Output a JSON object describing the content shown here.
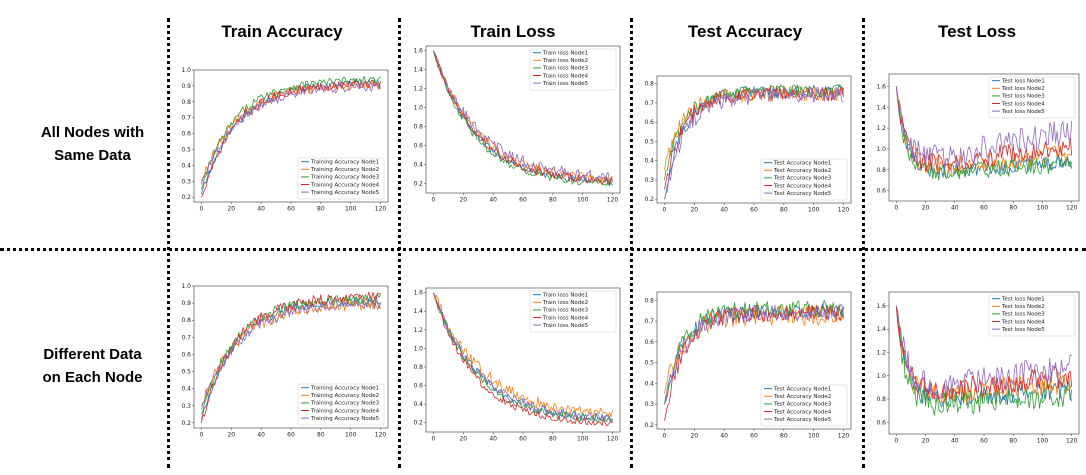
{
  "column_titles": [
    "Train Accuracy",
    "Train Loss",
    "Test Accuracy",
    "Test Loss"
  ],
  "row_labels": [
    {
      "line1": "All Nodes with",
      "line2": "Same Data"
    },
    {
      "line1": "Different Data",
      "line2": "on Each Node"
    }
  ],
  "colors": {
    "node1": "#1f77b4",
    "node2": "#ff7f0e",
    "node3": "#2ca02c",
    "node4": "#d62728",
    "node5": "#9467bd"
  },
  "chart_data": [
    {
      "id": "same-train-acc",
      "type": "line",
      "row": "All Nodes with Same Data",
      "column": "Train Accuracy",
      "xlim": [
        0,
        120
      ],
      "ylim": [
        0.17,
        1.0
      ],
      "xticks": [
        0,
        20,
        40,
        60,
        80,
        100,
        120
      ],
      "yticks": [
        0.2,
        0.3,
        0.4,
        0.5,
        0.6,
        0.7,
        0.8,
        0.9,
        1.0
      ],
      "legend_position": "lower-right",
      "series": [
        {
          "name": "Training Accuracy Node1",
          "start": 0.22,
          "end": 0.93,
          "rate": 0.04,
          "noise": 0.025
        },
        {
          "name": "Training Accuracy Node2",
          "start": 0.3,
          "end": 0.91,
          "rate": 0.042,
          "noise": 0.03
        },
        {
          "name": "Training Accuracy Node3",
          "start": 0.25,
          "end": 0.94,
          "rate": 0.045,
          "noise": 0.025
        },
        {
          "name": "Training Accuracy Node4",
          "start": 0.2,
          "end": 0.92,
          "rate": 0.043,
          "noise": 0.028
        },
        {
          "name": "Training Accuracy Node5",
          "start": 0.28,
          "end": 0.9,
          "rate": 0.04,
          "noise": 0.03
        }
      ]
    },
    {
      "id": "same-train-loss",
      "type": "line",
      "row": "All Nodes with Same Data",
      "column": "Train Loss",
      "xlim": [
        0,
        120
      ],
      "ylim": [
        0.1,
        1.65
      ],
      "xticks": [
        0,
        20,
        40,
        60,
        80,
        100,
        120
      ],
      "yticks": [
        0.2,
        0.4,
        0.6,
        0.8,
        1.0,
        1.2,
        1.4,
        1.6
      ],
      "legend_position": "upper-right",
      "series": [
        {
          "name": "Train loss Node1",
          "start": 1.6,
          "end": 0.2,
          "rate": 0.035,
          "noise": 0.04
        },
        {
          "name": "Train loss Node2",
          "start": 1.6,
          "end": 0.22,
          "rate": 0.033,
          "noise": 0.05
        },
        {
          "name": "Train loss Node3",
          "start": 1.6,
          "end": 0.18,
          "rate": 0.036,
          "noise": 0.04
        },
        {
          "name": "Train loss Node4",
          "start": 1.6,
          "end": 0.2,
          "rate": 0.034,
          "noise": 0.045
        },
        {
          "name": "Train loss Node5",
          "start": 1.6,
          "end": 0.24,
          "rate": 0.032,
          "noise": 0.06
        }
      ]
    },
    {
      "id": "same-test-acc",
      "type": "line",
      "row": "All Nodes with Same Data",
      "column": "Test Accuracy",
      "xlim": [
        0,
        120
      ],
      "ylim": [
        0.18,
        0.84
      ],
      "xticks": [
        0,
        20,
        40,
        60,
        80,
        100,
        120
      ],
      "yticks": [
        0.2,
        0.3,
        0.4,
        0.5,
        0.6,
        0.7,
        0.8
      ],
      "legend_position": "lower-right",
      "series": [
        {
          "name": "Test Accuracy Node1",
          "start": 0.2,
          "end": 0.76,
          "rate": 0.08,
          "noise": 0.035
        },
        {
          "name": "Test Accuracy Node2",
          "start": 0.35,
          "end": 0.75,
          "rate": 0.08,
          "noise": 0.04
        },
        {
          "name": "Test Accuracy Node3",
          "start": 0.3,
          "end": 0.76,
          "rate": 0.085,
          "noise": 0.035
        },
        {
          "name": "Test Accuracy Node4",
          "start": 0.25,
          "end": 0.75,
          "rate": 0.08,
          "noise": 0.04
        },
        {
          "name": "Test Accuracy Node5",
          "start": 0.2,
          "end": 0.74,
          "rate": 0.075,
          "noise": 0.045
        }
      ]
    },
    {
      "id": "same-test-loss",
      "type": "line",
      "row": "All Nodes with Same Data",
      "column": "Test Loss",
      "xlim": [
        0,
        120
      ],
      "ylim": [
        0.5,
        1.72
      ],
      "xticks": [
        0,
        20,
        40,
        60,
        80,
        100,
        120
      ],
      "yticks": [
        0.6,
        0.8,
        1.0,
        1.2,
        1.4,
        1.6
      ],
      "legend_position": "upper-right",
      "series": [
        {
          "name": "Test loss Node1",
          "start": 1.6,
          "end": 0.75,
          "rate": 0.15,
          "noise": 0.07,
          "rise": 0.001
        },
        {
          "name": "Test loss Node2",
          "start": 1.6,
          "end": 0.78,
          "rate": 0.15,
          "noise": 0.09,
          "rise": 0.0015
        },
        {
          "name": "Test loss Node3",
          "start": 1.6,
          "end": 0.74,
          "rate": 0.16,
          "noise": 0.08,
          "rise": 0.001
        },
        {
          "name": "Test loss Node4",
          "start": 1.6,
          "end": 0.8,
          "rate": 0.15,
          "noise": 0.1,
          "rise": 0.002
        },
        {
          "name": "Test loss Node5",
          "start": 1.6,
          "end": 0.82,
          "rate": 0.14,
          "noise": 0.13,
          "rise": 0.003
        }
      ]
    },
    {
      "id": "diff-train-acc",
      "type": "line",
      "row": "Different Data on Each Node",
      "column": "Train Accuracy",
      "xlim": [
        0,
        120
      ],
      "ylim": [
        0.17,
        1.0
      ],
      "xticks": [
        0,
        20,
        40,
        60,
        80,
        100,
        120
      ],
      "yticks": [
        0.2,
        0.3,
        0.4,
        0.5,
        0.6,
        0.7,
        0.8,
        0.9,
        1.0
      ],
      "legend_position": "lower-right",
      "series": [
        {
          "name": "Training Accuracy Node1",
          "start": 0.22,
          "end": 0.92,
          "rate": 0.042,
          "noise": 0.028
        },
        {
          "name": "Training Accuracy Node2",
          "start": 0.3,
          "end": 0.9,
          "rate": 0.04,
          "noise": 0.035
        },
        {
          "name": "Training Accuracy Node3",
          "start": 0.25,
          "end": 0.93,
          "rate": 0.045,
          "noise": 0.028
        },
        {
          "name": "Training Accuracy Node4",
          "start": 0.2,
          "end": 0.94,
          "rate": 0.045,
          "noise": 0.03
        },
        {
          "name": "Training Accuracy Node5",
          "start": 0.28,
          "end": 0.9,
          "rate": 0.04,
          "noise": 0.03
        }
      ]
    },
    {
      "id": "diff-train-loss",
      "type": "line",
      "row": "Different Data on Each Node",
      "column": "Train Loss",
      "xlim": [
        0,
        120
      ],
      "ylim": [
        0.1,
        1.65
      ],
      "xticks": [
        0,
        20,
        40,
        60,
        80,
        100,
        120
      ],
      "yticks": [
        0.2,
        0.4,
        0.6,
        0.8,
        1.0,
        1.2,
        1.4,
        1.6
      ],
      "legend_position": "upper-right",
      "series": [
        {
          "name": "Train loss Node1",
          "start": 1.6,
          "end": 0.22,
          "rate": 0.033,
          "noise": 0.045
        },
        {
          "name": "Train loss Node2",
          "start": 1.6,
          "end": 0.25,
          "rate": 0.03,
          "noise": 0.07
        },
        {
          "name": "Train loss Node3",
          "start": 1.6,
          "end": 0.2,
          "rate": 0.034,
          "noise": 0.045
        },
        {
          "name": "Train loss Node4",
          "start": 1.6,
          "end": 0.18,
          "rate": 0.036,
          "noise": 0.04
        },
        {
          "name": "Train loss Node5",
          "start": 1.6,
          "end": 0.22,
          "rate": 0.033,
          "noise": 0.05
        }
      ]
    },
    {
      "id": "diff-test-acc",
      "type": "line",
      "row": "Different Data on Each Node",
      "column": "Test Accuracy",
      "xlim": [
        0,
        120
      ],
      "ylim": [
        0.18,
        0.84
      ],
      "xticks": [
        0,
        20,
        40,
        60,
        80,
        100,
        120
      ],
      "yticks": [
        0.2,
        0.3,
        0.4,
        0.5,
        0.6,
        0.7,
        0.8
      ],
      "legend_position": "lower-right",
      "series": [
        {
          "name": "Test Accuracy Node1",
          "start": 0.3,
          "end": 0.75,
          "rate": 0.08,
          "noise": 0.035
        },
        {
          "name": "Test Accuracy Node2",
          "start": 0.35,
          "end": 0.73,
          "rate": 0.075,
          "noise": 0.05
        },
        {
          "name": "Test Accuracy Node3",
          "start": 0.3,
          "end": 0.76,
          "rate": 0.085,
          "noise": 0.04
        },
        {
          "name": "Test Accuracy Node4",
          "start": 0.22,
          "end": 0.74,
          "rate": 0.08,
          "noise": 0.04
        },
        {
          "name": "Test Accuracy Node5",
          "start": 0.3,
          "end": 0.74,
          "rate": 0.075,
          "noise": 0.04
        }
      ]
    },
    {
      "id": "diff-test-loss",
      "type": "line",
      "row": "Different Data on Each Node",
      "column": "Test Loss",
      "xlim": [
        0,
        120
      ],
      "ylim": [
        0.5,
        1.72
      ],
      "xticks": [
        0,
        20,
        40,
        60,
        80,
        100,
        120
      ],
      "yticks": [
        0.6,
        0.8,
        1.0,
        1.2,
        1.4,
        1.6
      ],
      "legend_position": "upper-right",
      "series": [
        {
          "name": "Test loss Node1",
          "start": 1.6,
          "end": 0.78,
          "rate": 0.15,
          "noise": 0.09,
          "rise": 0.0008
        },
        {
          "name": "Test loss Node2",
          "start": 1.6,
          "end": 0.8,
          "rate": 0.15,
          "noise": 0.1,
          "rise": 0.0012
        },
        {
          "name": "Test loss Node3",
          "start": 1.6,
          "end": 0.72,
          "rate": 0.16,
          "noise": 0.1,
          "rise": 0.001
        },
        {
          "name": "Test loss Node4",
          "start": 1.6,
          "end": 0.82,
          "rate": 0.15,
          "noise": 0.1,
          "rise": 0.0015
        },
        {
          "name": "Test loss Node5",
          "start": 1.6,
          "end": 0.84,
          "rate": 0.14,
          "noise": 0.12,
          "rise": 0.002
        }
      ]
    }
  ]
}
